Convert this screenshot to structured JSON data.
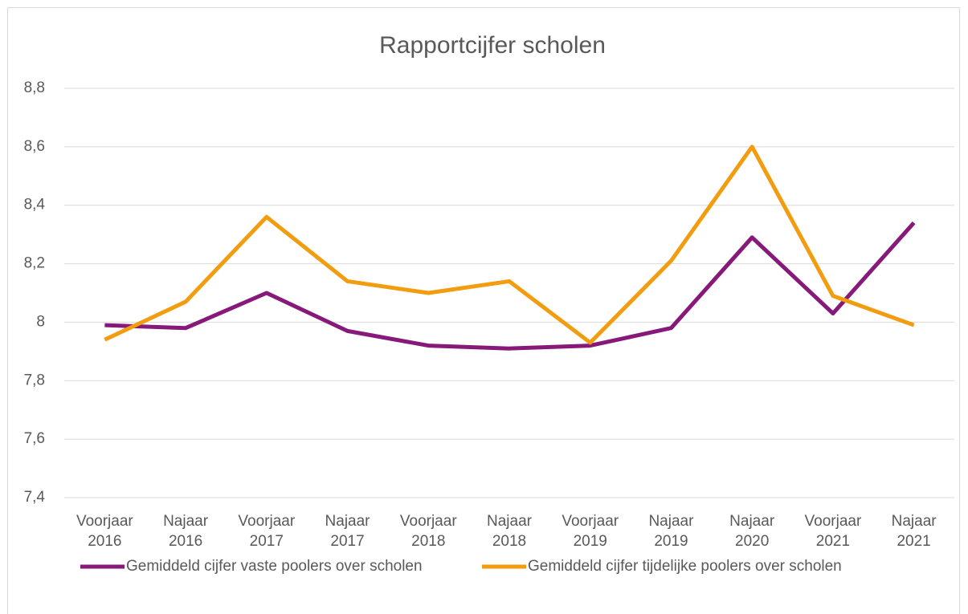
{
  "chart_data": {
    "type": "line",
    "title": "Rapportcijfer scholen",
    "categories": [
      "Voorjaar 2016",
      "Najaar 2016",
      "Voorjaar 2017",
      "Najaar 2017",
      "Voorjaar 2018",
      "Najaar 2018",
      "Voorjaar 2019",
      "Najaar 2019",
      "Najaar 2020",
      "Voorjaar 2021",
      "Najaar 2021"
    ],
    "series": [
      {
        "name": "Gemiddeld cijfer vaste poolers over scholen",
        "color": "#86197a",
        "values": [
          7.99,
          7.98,
          8.1,
          7.97,
          7.92,
          7.91,
          7.92,
          7.98,
          8.29,
          8.03,
          8.34
        ]
      },
      {
        "name": "Gemiddeld cijfer tijdelijke poolers over scholen",
        "color": "#f29c0f",
        "values": [
          7.94,
          8.07,
          8.36,
          8.14,
          8.1,
          8.14,
          7.93,
          8.21,
          8.6,
          8.09,
          7.99
        ]
      }
    ],
    "ylim": [
      7.4,
      8.8
    ],
    "yticks": [
      {
        "value": 7.4,
        "label": "7,4"
      },
      {
        "value": 7.6,
        "label": "7,6"
      },
      {
        "value": 7.8,
        "label": "7,8"
      },
      8,
      {
        "value": 8.2,
        "label": "8,2"
      },
      {
        "value": 8.4,
        "label": "8,4"
      },
      {
        "value": 8.6,
        "label": "8,6"
      },
      {
        "value": 8.8,
        "label": "8,8"
      }
    ],
    "grid": true,
    "legend": "bottom"
  }
}
